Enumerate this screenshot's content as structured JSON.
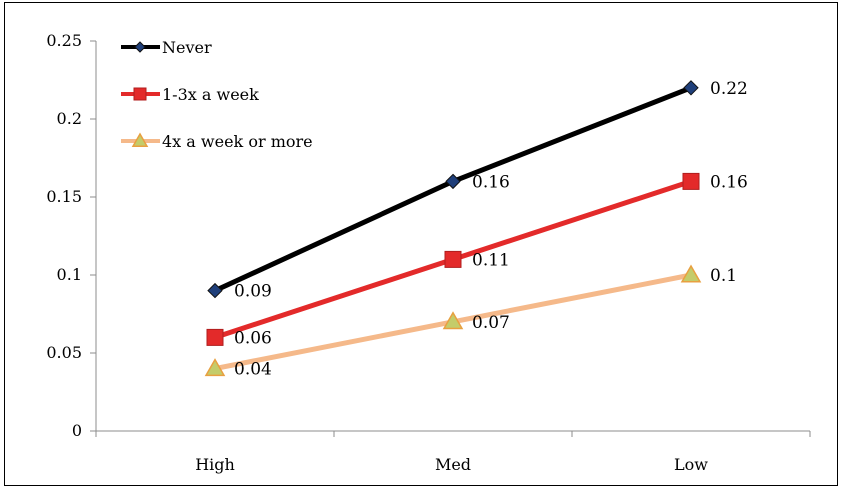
{
  "chart_data": {
    "type": "line",
    "categories": [
      "High",
      "Med",
      "Low"
    ],
    "ylim": [
      0,
      0.25
    ],
    "yticks": [
      "0",
      "0.05",
      "0.1",
      "0.15",
      "0.2",
      "0.25"
    ],
    "grid": false,
    "legend_position": "top-left",
    "series": [
      {
        "name": "Never",
        "values": [
          0.09,
          0.16,
          0.22
        ],
        "labels": [
          "0.09",
          "0.16",
          "0.22"
        ],
        "color": "#000000",
        "marker": "diamond",
        "marker_color": "#1f3f7a"
      },
      {
        "name": "1-3x a week",
        "values": [
          0.06,
          0.11,
          0.16
        ],
        "labels": [
          "0.06",
          "0.11",
          "0.16"
        ],
        "color": "#e32a2a",
        "marker": "square",
        "marker_color": "#e32a2a"
      },
      {
        "name": "4x a week or more",
        "values": [
          0.04,
          0.07,
          0.1
        ],
        "labels": [
          "0.04",
          "0.07",
          "0.1"
        ],
        "color": "#f5b98a",
        "marker": "triangle",
        "marker_color": "#c4cc6a"
      }
    ]
  }
}
